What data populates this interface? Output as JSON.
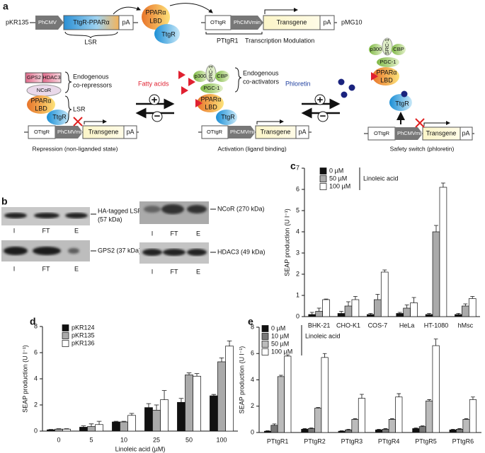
{
  "panel_a": {
    "label": "a",
    "top": {
      "plasmid1": "pKR135",
      "promoter1": "PhCMV",
      "fusion": "TtgR-PPARα",
      "pa1": "pA",
      "lsr": "LSR",
      "ppar": "PPARα",
      "lbd": "LBD",
      "ttgr": "TtgR",
      "operator": "OTtgR",
      "promoter2": "PhCMVmin",
      "transgene": "Transgene",
      "pa2": "pA",
      "plasmid2": "pMG10",
      "ptg": "PTtgR1",
      "modulation": "Transcription Modulation"
    },
    "repression": {
      "gps2": "GPS2",
      "hdac3": "HDAC3",
      "ncor": "NCoR",
      "ppar": "PPARα",
      "lbd": "LBD",
      "ttgr": "TtgR",
      "brace1a": "Endogenous",
      "brace1b": "co-repressors",
      "brace2": "LSR",
      "operator": "OTtgR",
      "promoter": "PhCMVmin",
      "transgene": "Transgene",
      "pa": "pA",
      "caption": "Repression (non-liganded state)"
    },
    "switch1": {
      "ligand": "Fatty acids",
      "plus": "+",
      "minus": "−"
    },
    "activation": {
      "p300": "p300",
      "src1": "SRC-1",
      "cbp": "CBP",
      "pgc1": "PGC-1",
      "ppar": "PPARα",
      "lbd": "LBD",
      "ttgr": "TtgR",
      "brace_a": "Endogenous",
      "brace_b": "co-activators",
      "operator": "OTtgR",
      "promoter": "PhCMVmin",
      "transgene": "Transgene",
      "pa": "pA",
      "caption": "Activation (ligand binding)"
    },
    "switch2": {
      "ligand": "Phloretin",
      "plus": "+",
      "minus": "−"
    },
    "safety": {
      "p300": "p300",
      "src1": "SRC-1",
      "cbp": "CBP",
      "pgc1": "PGC-1",
      "ppar": "PPARα",
      "lbd": "LBD",
      "ttgr": "TtgR",
      "operator": "OTtgR",
      "promoter": "PhCMVmin",
      "transgene": "Transgene",
      "pa": "pA",
      "caption": "Safety switch (phloretin)"
    }
  },
  "panel_b": {
    "label": "b",
    "blots": [
      {
        "band": "HA-tagged LSR",
        "size": "(57 kDa)",
        "lanes": [
          "I",
          "FT",
          "E"
        ]
      },
      {
        "band": "GPS2 (37 kDa)",
        "lanes": [
          "I",
          "FT",
          "E"
        ]
      },
      {
        "band": "NCoR (270 kDa)",
        "lanes": [
          "I",
          "FT",
          "E"
        ]
      },
      {
        "band": "HDAC3 (49 kDa)",
        "lanes": [
          "I",
          "FT",
          "E"
        ]
      }
    ]
  },
  "chart_data": [
    {
      "type": "bar",
      "panel_label": "c",
      "ylabel": "SEAP production (U l⁻¹)",
      "legend_title": "Linoleic acid",
      "categories": [
        "BHK-21",
        "CHO-K1",
        "COS-7",
        "HeLa",
        "HT-1080",
        "hMsc"
      ],
      "ylim": [
        0,
        7
      ],
      "yticks": [
        0,
        1,
        2,
        3,
        4,
        5,
        6,
        7
      ],
      "series": [
        {
          "name": "0 µM",
          "color": "#111111",
          "values": [
            0.1,
            0.15,
            0.1,
            0.15,
            0.1,
            0.1
          ],
          "errors": [
            0.1,
            0.1,
            0.05,
            0.05,
            0.05,
            0.05
          ]
        },
        {
          "name": "50 µM",
          "color": "#aaaaaa",
          "values": [
            0.25,
            0.5,
            0.8,
            0.4,
            4.0,
            0.5
          ],
          "errors": [
            0.15,
            0.2,
            0.25,
            0.15,
            0.3,
            0.1
          ]
        },
        {
          "name": "100 µM",
          "color": "#ffffff",
          "values": [
            0.8,
            0.8,
            2.1,
            0.65,
            6.1,
            0.85
          ],
          "errors": [
            0.03,
            0.15,
            0.1,
            0.25,
            0.2,
            0.1
          ]
        }
      ]
    },
    {
      "type": "bar",
      "panel_label": "d",
      "ylabel": "SEAP production (U l⁻¹)",
      "xlabel": "Linoleic acid (µM)",
      "categories": [
        "0",
        "5",
        "10",
        "25",
        "50",
        "100"
      ],
      "ylim": [
        0,
        8
      ],
      "yticks": [
        0,
        2,
        4,
        6,
        8
      ],
      "series": [
        {
          "name": "pKR124",
          "color": "#111111",
          "values": [
            0.1,
            0.3,
            0.7,
            1.8,
            2.2,
            2.7
          ],
          "errors": [
            0.03,
            0.1,
            0.05,
            0.3,
            0.3,
            0.1
          ]
        },
        {
          "name": "pKR135",
          "color": "#aaaaaa",
          "values": [
            0.15,
            0.35,
            0.7,
            1.6,
            4.3,
            5.3
          ],
          "errors": [
            0.03,
            0.2,
            0.05,
            0.4,
            0.15,
            0.3
          ]
        },
        {
          "name": "pKR136",
          "color": "#ffffff",
          "values": [
            0.15,
            0.5,
            1.2,
            2.4,
            4.2,
            6.5
          ],
          "errors": [
            0.03,
            0.25,
            0.15,
            0.7,
            0.2,
            0.4
          ]
        }
      ]
    },
    {
      "type": "bar",
      "panel_label": "e",
      "ylabel": "SEAP production (U l⁻¹)",
      "legend_title": "Linoleic acid",
      "categories": [
        "PTtgR1",
        "PTtgR2",
        "PTtgR3",
        "PTtgR4",
        "PTtgR5",
        "PTtgR6"
      ],
      "ylim": [
        0,
        8
      ],
      "yticks": [
        0,
        2,
        4,
        6,
        8
      ],
      "series": [
        {
          "name": "0 µM",
          "color": "#111111",
          "values": [
            0.1,
            0.25,
            0.1,
            0.2,
            0.3,
            0.2
          ],
          "errors": [
            0.03,
            0.05,
            0.03,
            0.05,
            0.05,
            0.05
          ]
        },
        {
          "name": "10 µM",
          "color": "#777777",
          "values": [
            0.55,
            0.3,
            0.2,
            0.25,
            0.45,
            0.25
          ],
          "errors": [
            0.1,
            0.05,
            0.05,
            0.05,
            0.05,
            0.05
          ]
        },
        {
          "name": "50 µM",
          "color": "#bbbbbb",
          "values": [
            4.25,
            1.85,
            1.0,
            1.0,
            2.4,
            1.0
          ],
          "errors": [
            0.1,
            0.05,
            0.05,
            0.05,
            0.1,
            0.05
          ]
        },
        {
          "name": "100 µM",
          "color": "#ffffff",
          "values": [
            5.8,
            5.7,
            2.6,
            2.7,
            6.6,
            2.5
          ],
          "errors": [
            0.1,
            0.3,
            0.3,
            0.25,
            0.5,
            0.2
          ]
        }
      ]
    }
  ]
}
